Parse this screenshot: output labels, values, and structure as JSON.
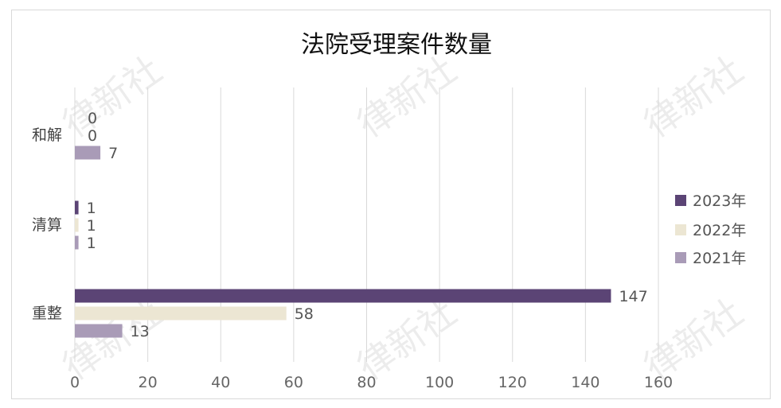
{
  "watermark": "律新社",
  "chart_data": {
    "type": "bar",
    "orientation": "horizontal",
    "title": "法院受理案件数量",
    "categories": [
      "重整",
      "清算",
      "和解"
    ],
    "series": [
      {
        "name": "2023年",
        "color": "#5b4475",
        "values": [
          147,
          1,
          0
        ]
      },
      {
        "name": "2022年",
        "color": "#ece6d3",
        "values": [
          58,
          1,
          0
        ]
      },
      {
        "name": "2021年",
        "color": "#a99bb7",
        "values": [
          13,
          1,
          7
        ]
      }
    ],
    "xlim": [
      0,
      160
    ],
    "xticks": [
      0,
      20,
      40,
      60,
      80,
      100,
      120,
      140,
      160
    ],
    "grid": true,
    "legend_position": "right",
    "data_labels": true
  }
}
